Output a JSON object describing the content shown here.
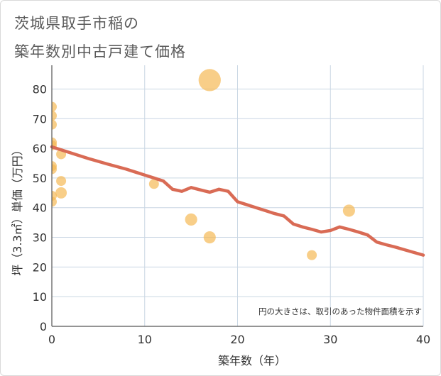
{
  "title_line1": "茨城県取手市稲の",
  "title_line2": "築年数別中古戸建て価格",
  "chart_data": {
    "type": "scatter",
    "title": "茨城県取手市稲の築年数別中古戸建て価格",
    "xlabel": "築年数（年）",
    "ylabel": "坪（3.3㎡）単価（万円）",
    "xlim": [
      0,
      40
    ],
    "ylim": [
      0,
      88
    ],
    "xticks": [
      0,
      10,
      20,
      30,
      40
    ],
    "yticks": [
      0,
      10,
      20,
      30,
      40,
      50,
      60,
      70,
      80
    ],
    "grid": true,
    "note": "円の大きさは、取引のあった物件面積を示す",
    "colors": {
      "bubble": "#f5b955",
      "trend": "#d96b55",
      "grid": "#c9d6e3",
      "axis": "#555555",
      "text": "#333333"
    },
    "points": [
      {
        "x": 0,
        "y": 74,
        "size": 1
      },
      {
        "x": 0,
        "y": 71,
        "size": 1
      },
      {
        "x": 0,
        "y": 68,
        "size": 1
      },
      {
        "x": 0,
        "y": 62,
        "size": 1
      },
      {
        "x": 0,
        "y": 61,
        "size": 1
      },
      {
        "x": 0,
        "y": 54,
        "size": 1
      },
      {
        "x": 0,
        "y": 53,
        "size": 1
      },
      {
        "x": 0,
        "y": 44,
        "size": 1
      },
      {
        "x": 0,
        "y": 42,
        "size": 1
      },
      {
        "x": 1,
        "y": 58,
        "size": 1
      },
      {
        "x": 1,
        "y": 49,
        "size": 1
      },
      {
        "x": 1,
        "y": 45,
        "size": 1.3
      },
      {
        "x": 11,
        "y": 48,
        "size": 1
      },
      {
        "x": 15,
        "y": 36,
        "size": 1.5
      },
      {
        "x": 17,
        "y": 83,
        "size": 5
      },
      {
        "x": 17,
        "y": 30,
        "size": 1.5
      },
      {
        "x": 28,
        "y": 24,
        "size": 1
      },
      {
        "x": 32,
        "y": 39,
        "size": 1.5
      }
    ],
    "trend": {
      "name": "trend",
      "x": [
        0,
        2,
        4,
        6,
        8,
        9,
        10,
        11,
        12,
        13,
        14,
        15,
        16,
        17,
        18,
        19,
        20,
        21,
        22,
        23,
        24,
        25,
        26,
        27,
        28,
        29,
        30,
        31,
        32,
        33,
        34,
        35,
        36,
        37,
        38,
        39,
        40
      ],
      "y": [
        60.5,
        58.5,
        56.5,
        54.7,
        53,
        52,
        51,
        50,
        49,
        46.2,
        45.5,
        46.8,
        46,
        45.2,
        46.2,
        45.5,
        42,
        41,
        40,
        39,
        38,
        37.2,
        34.5,
        33.5,
        32.7,
        31.8,
        32.3,
        33.5,
        32.7,
        31.8,
        30.8,
        28.4,
        27.5,
        26.7,
        25.8,
        24.9,
        24
      ]
    }
  }
}
